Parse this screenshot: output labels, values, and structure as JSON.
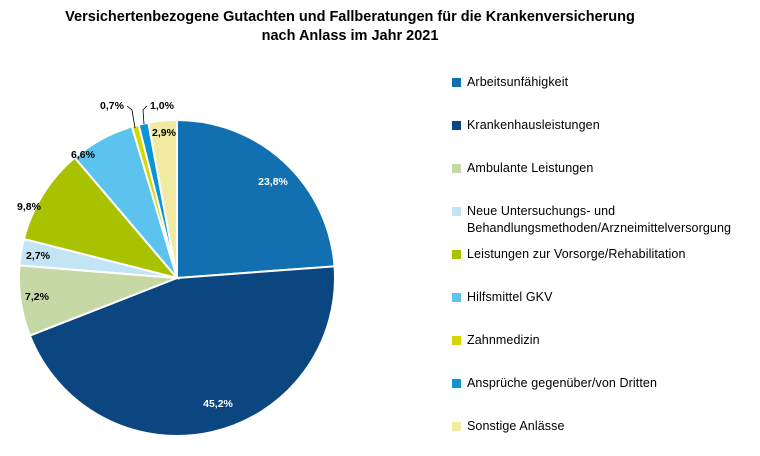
{
  "chart_data": {
    "type": "pie",
    "title": [
      "Versichertenbezogene Gutachten und Fallberatungen für die Krankenversicherung",
      "nach Anlass im Jahr 2021"
    ],
    "legend_position": "right",
    "slices": [
      {
        "name": "Arbeitsunfähigkeit",
        "value": 23.8,
        "label": "23,8%",
        "color": "#1270b0"
      },
      {
        "name": "Krankenhausleistungen",
        "value": 45.2,
        "label": "45,2%",
        "color": "#0b4680"
      },
      {
        "name": "Ambulante Leistungen",
        "value": 7.2,
        "label": "7,2%",
        "color": "#c5d8a5"
      },
      {
        "name": "Neue Untersuchungs- und Behandlungsmethoden/Arzneimittelversorgung",
        "value": 2.7,
        "label": "2,7%",
        "color": "#c3e4f5"
      },
      {
        "name": "Leistungen zur Vorsorge/Rehabilitation",
        "value": 9.8,
        "label": "9,8%",
        "color": "#a9c200"
      },
      {
        "name": "Hilfsmittel GKV",
        "value": 6.6,
        "label": "6,6%",
        "color": "#5cc3ef"
      },
      {
        "name": "Zahnmedizin",
        "value": 0.7,
        "label": "0,7%",
        "color": "#d4d800"
      },
      {
        "name": "Ansprüche gegenüber/von Dritten",
        "value": 1.0,
        "label": "1,0%",
        "color": "#0a95d5"
      },
      {
        "name": "Sonstige Anlässe",
        "value": 2.9,
        "label": "2,9%",
        "color": "#f0eaa2"
      }
    ]
  },
  "legend": {
    "items": [
      {
        "lines": [
          "Arbeitsunfähigkeit"
        ]
      },
      {
        "lines": [
          "Krankenhausleistungen"
        ]
      },
      {
        "lines": [
          "Ambulante Leistungen"
        ]
      },
      {
        "lines": [
          "Neue Untersuchungs- und",
          "Behandlungsmethoden/Arzneimittelversorgung"
        ]
      },
      {
        "lines": [
          "Leistungen zur Vorsorge/Rehabilitation"
        ]
      },
      {
        "lines": [
          "Hilfsmittel GKV"
        ]
      },
      {
        "lines": [
          "Zahnmedizin"
        ]
      },
      {
        "lines": [
          "Ansprüche gegenüber/von Dritten"
        ]
      },
      {
        "lines": [
          "Sonstige Anlässe"
        ]
      }
    ]
  }
}
